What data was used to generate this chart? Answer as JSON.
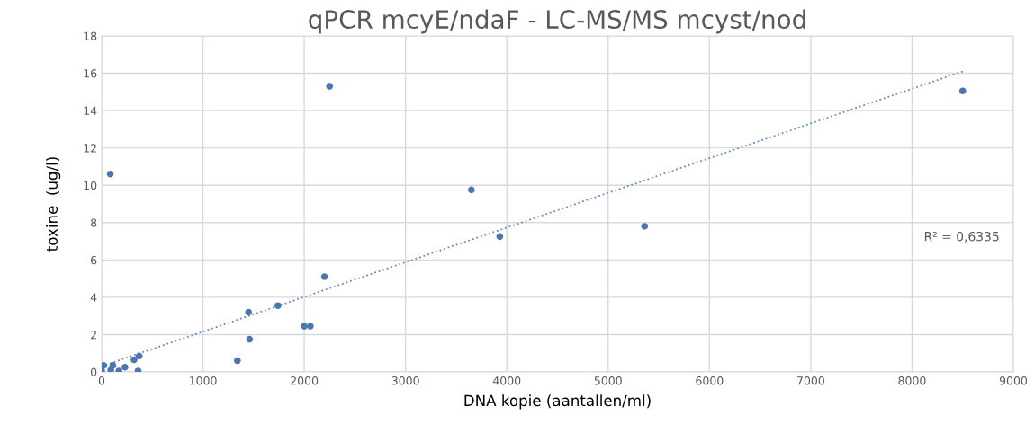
{
  "chart_data": {
    "type": "scatter",
    "title": "qPCR mcyE/ndaF - LC-MS/MS mcyst/nod",
    "xlabel": "DNA kopie (aantallen/ml)",
    "ylabel": "toxine  (ug/l)",
    "series": [
      {
        "color": "#4a76b5",
        "marker": "circle",
        "x": [
          0,
          20,
          90,
          110,
          170,
          230,
          320,
          360,
          370,
          85,
          1340,
          1450,
          1460,
          1740,
          2000,
          2060,
          2200,
          2250,
          3650,
          3930,
          5360,
          8500
        ],
        "values": [
          0.05,
          0.35,
          0.1,
          0.35,
          0.05,
          0.25,
          0.65,
          0.05,
          0.85,
          10.6,
          0.6,
          3.2,
          1.75,
          3.55,
          2.45,
          2.45,
          5.1,
          15.3,
          9.75,
          7.25,
          7.8,
          15.05
        ]
      },
      {
        "type": "line",
        "color": "#5b8bd0",
        "line_style": "dotted",
        "x": [
          0,
          8500
        ],
        "values": [
          0.3,
          16.1
        ]
      }
    ],
    "annotations": [
      "R² = 0,6335"
    ],
    "xlim": [
      0,
      9000
    ],
    "xticks": [
      0,
      1000,
      2000,
      3000,
      4000,
      5000,
      6000,
      7000,
      8000,
      9000
    ],
    "ylim": [
      0,
      18
    ],
    "yticks": [
      0,
      2,
      4,
      6,
      8,
      10,
      12,
      14,
      16,
      18
    ],
    "grid": true
  }
}
